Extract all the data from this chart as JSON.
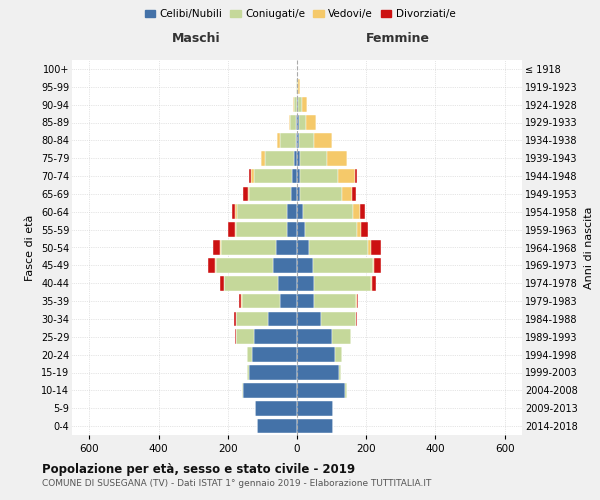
{
  "age_groups": [
    "0-4",
    "5-9",
    "10-14",
    "15-19",
    "20-24",
    "25-29",
    "30-34",
    "35-39",
    "40-44",
    "45-49",
    "50-54",
    "55-59",
    "60-64",
    "65-69",
    "70-74",
    "75-79",
    "80-84",
    "85-89",
    "90-94",
    "95-99",
    "100+"
  ],
  "birth_years": [
    "2014-2018",
    "2009-2013",
    "2004-2008",
    "1999-2003",
    "1994-1998",
    "1989-1993",
    "1984-1988",
    "1979-1983",
    "1974-1978",
    "1969-1973",
    "1964-1968",
    "1959-1963",
    "1954-1958",
    "1949-1953",
    "1944-1948",
    "1939-1943",
    "1934-1938",
    "1929-1933",
    "1924-1928",
    "1919-1923",
    "≤ 1918"
  ],
  "males": {
    "celibi": [
      115,
      120,
      155,
      140,
      130,
      125,
      85,
      50,
      55,
      70,
      60,
      30,
      28,
      18,
      14,
      8,
      4,
      2,
      1,
      0,
      0
    ],
    "coniugati": [
      0,
      0,
      5,
      5,
      15,
      50,
      90,
      110,
      155,
      165,
      160,
      145,
      145,
      120,
      110,
      85,
      45,
      18,
      8,
      2,
      0
    ],
    "vedovi": [
      0,
      0,
      0,
      0,
      0,
      0,
      1,
      2,
      2,
      2,
      3,
      5,
      5,
      5,
      8,
      10,
      8,
      4,
      2,
      0,
      0
    ],
    "divorziati": [
      0,
      0,
      0,
      0,
      0,
      3,
      5,
      5,
      10,
      20,
      20,
      20,
      10,
      12,
      8,
      2,
      0,
      0,
      0,
      0,
      0
    ]
  },
  "females": {
    "nubili": [
      105,
      105,
      140,
      120,
      110,
      100,
      70,
      50,
      50,
      45,
      35,
      22,
      18,
      10,
      8,
      8,
      5,
      5,
      3,
      1,
      0
    ],
    "coniugate": [
      0,
      0,
      5,
      8,
      20,
      55,
      100,
      120,
      165,
      175,
      170,
      150,
      145,
      120,
      110,
      80,
      45,
      20,
      12,
      3,
      0
    ],
    "vedove": [
      0,
      0,
      0,
      0,
      0,
      0,
      1,
      2,
      2,
      3,
      8,
      12,
      18,
      30,
      50,
      55,
      50,
      30,
      15,
      5,
      1
    ],
    "divorziate": [
      0,
      0,
      0,
      0,
      0,
      2,
      3,
      5,
      10,
      20,
      30,
      20,
      15,
      10,
      5,
      2,
      0,
      0,
      0,
      0,
      0
    ]
  },
  "colors": {
    "celibi": "#4472a8",
    "coniugati": "#c5d89a",
    "vedovi": "#f5c96a",
    "divorziati": "#cc1111"
  },
  "xlim": 650,
  "title": "Popolazione per età, sesso e stato civile - 2019",
  "subtitle": "COMUNE DI SUSEGANA (TV) - Dati ISTAT 1° gennaio 2019 - Elaborazione TUTTITALIA.IT",
  "ylabel_left": "Fasce di età",
  "ylabel_right": "Anni di nascita",
  "xlabel_left": "Maschi",
  "xlabel_right": "Femmine",
  "legend_labels": [
    "Celibi/Nubili",
    "Coniugati/e",
    "Vedovi/e",
    "Divorziati/e"
  ],
  "bg_color": "#f0f0f0",
  "plot_bg": "#ffffff",
  "xticks": [
    -600,
    -400,
    -200,
    0,
    200,
    400,
    600
  ]
}
